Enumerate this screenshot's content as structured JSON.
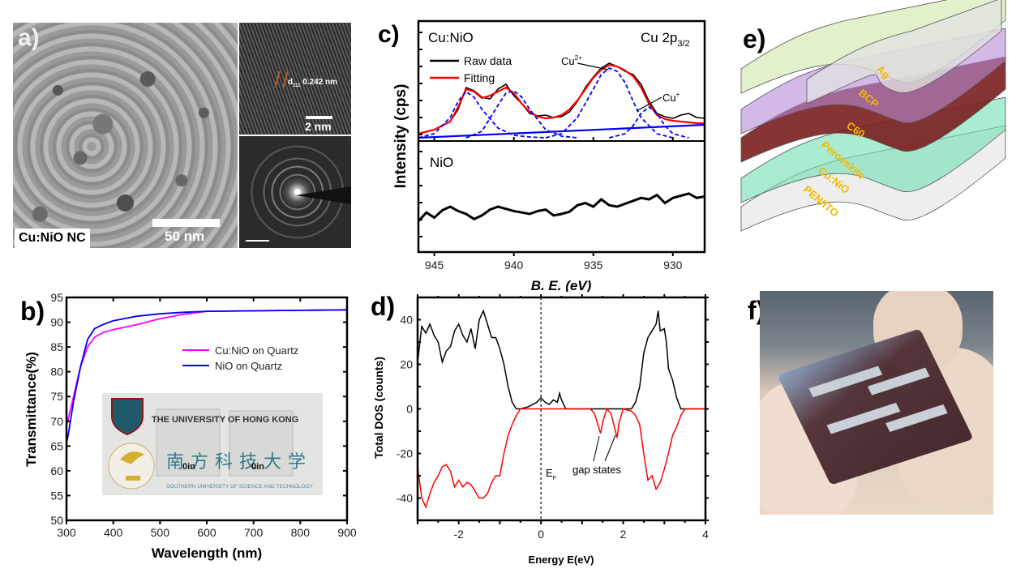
{
  "figure": {
    "panels": {
      "a": {
        "label": "a)",
        "sample_label": "Cu:NiO NC",
        "main_scale_bar": "50 nm",
        "hrtem_annotation": "d",
        "hrtem_annotation_sub": "111",
        "hrtem_annotation_value": "0.242 nm",
        "hrtem_scale_bar": "2 nm"
      },
      "e": {
        "label": "e)",
        "layers": [
          {
            "name": "Ag",
            "color": "#e3e3e3"
          },
          {
            "name": "BCP",
            "color": "#cfe6a8"
          },
          {
            "name": "C60",
            "color": "#b58ad8"
          },
          {
            "name": "Perovskite",
            "color": "#7a1e1e"
          },
          {
            "name": "Cu:NiO",
            "color": "#6fe0b2"
          },
          {
            "name": "PEN/ITO",
            "color": "#e3e3e3"
          }
        ],
        "label_color": "#f5b800"
      },
      "f": {
        "label": "f)",
        "description": "flexible perovskite device held between fingers"
      }
    }
  },
  "chart_data": [
    {
      "panel": "b)",
      "type": "line",
      "title": "",
      "xlabel": "Wavelength (nm)",
      "ylabel": "Transmittance(%)",
      "xlim": [
        300,
        900
      ],
      "ylim": [
        50,
        95
      ],
      "xticks": [
        300,
        400,
        500,
        600,
        700,
        800,
        900
      ],
      "yticks": [
        50,
        55,
        60,
        65,
        70,
        75,
        80,
        85,
        90,
        95
      ],
      "legend_position": "upper-right",
      "series": [
        {
          "name": "Cu:NiO on Quartz",
          "color": "#ff00ff",
          "x": [
            300,
            305,
            315,
            330,
            345,
            360,
            380,
            400,
            450,
            500,
            550,
            600,
            700,
            800,
            900
          ],
          "y": [
            69,
            71,
            75,
            81,
            85,
            87,
            88,
            88.5,
            89.5,
            90.7,
            91.6,
            92.2,
            92.3,
            92.4,
            92.5
          ]
        },
        {
          "name": "NiO on Quartz",
          "color": "#0000ff",
          "x": [
            300,
            305,
            315,
            330,
            345,
            360,
            380,
            400,
            450,
            500,
            550,
            600,
            700,
            800,
            900
          ],
          "y": [
            65.5,
            68,
            74,
            81,
            86.5,
            88.7,
            89.6,
            90.3,
            91.2,
            91.7,
            92.0,
            92.2,
            92.3,
            92.4,
            92.5
          ]
        }
      ],
      "inset_photo": {
        "text_top": "THE UNIVERSITY OF HONG KONG",
        "text_chinese": "南方科技大学",
        "text_bottom": "SOUTHERN UNIVERSITY OF SCIENCE AND TECHNOLOGY",
        "sample_marks": [
          "0in",
          "0in"
        ]
      }
    },
    {
      "panel": "c)",
      "type": "line",
      "xlabel": "B. E. (eV)",
      "ylabel": "Intensity (cps)",
      "xlim": [
        946,
        928
      ],
      "xticks": [
        945,
        940,
        935,
        930
      ],
      "subplots": [
        {
          "sample": "Cu:NiO",
          "title_right": "Cu 2p",
          "title_right_sub": "3/2",
          "legend": [
            "Raw data",
            "Fitting"
          ],
          "annotations": [
            {
              "text": "Cu",
              "sup": "2+",
              "x": 934
            },
            {
              "text": "Cu",
              "sup": "+",
              "x": 932
            }
          ],
          "series": [
            {
              "name": "Raw data",
              "color": "#000000",
              "x": [
                946,
                945,
                944,
                943.5,
                943,
                942.5,
                942,
                941.5,
                941,
                940.5,
                940,
                939.5,
                939,
                938.5,
                938,
                937.5,
                937,
                936.5,
                936,
                935.5,
                935,
                934.5,
                934,
                933.5,
                933,
                932.5,
                932,
                931.5,
                931,
                930.5,
                930,
                929.5,
                929,
                928.5,
                928
              ],
              "y": [
                0.05,
                0.1,
                0.2,
                0.35,
                0.62,
                0.58,
                0.5,
                0.48,
                0.6,
                0.66,
                0.52,
                0.42,
                0.3,
                0.27,
                0.28,
                0.25,
                0.26,
                0.32,
                0.45,
                0.62,
                0.75,
                0.86,
                0.92,
                0.88,
                0.82,
                0.78,
                0.66,
                0.45,
                0.3,
                0.26,
                0.24,
                0.28,
                0.3,
                0.25,
                0.24
              ]
            },
            {
              "name": "Fitting",
              "color": "#ff0000",
              "x": [
                946,
                945,
                944,
                943.5,
                943,
                942.5,
                942,
                941.5,
                941,
                940.5,
                940,
                939.5,
                939,
                938.5,
                938,
                937.5,
                937,
                936.5,
                936,
                935.5,
                935,
                934.5,
                934,
                933.5,
                933,
                932.5,
                932,
                931.5,
                931,
                930.5,
                930,
                929.5,
                929,
                928.5,
                928
              ],
              "y": [
                0.05,
                0.1,
                0.2,
                0.38,
                0.6,
                0.57,
                0.49,
                0.52,
                0.57,
                0.62,
                0.55,
                0.42,
                0.32,
                0.26,
                0.24,
                0.25,
                0.28,
                0.35,
                0.46,
                0.6,
                0.74,
                0.84,
                0.9,
                0.88,
                0.83,
                0.76,
                0.62,
                0.42,
                0.28,
                0.23,
                0.21,
                0.2,
                0.19,
                0.18,
                0.18
              ]
            },
            {
              "name": "Peak 1",
              "color": "#0000ff",
              "dashed": true,
              "x": [
                946,
                945,
                944,
                943.5,
                943,
                942.5,
                942,
                941,
                940,
                939,
                938
              ],
              "y": [
                0.0,
                0.05,
                0.25,
                0.45,
                0.57,
                0.5,
                0.35,
                0.12,
                0.03,
                0.01,
                0.0
              ]
            },
            {
              "name": "Peak 2",
              "color": "#0000ff",
              "dashed": true,
              "x": [
                943,
                942,
                941,
                940.5,
                940,
                939.5,
                939,
                938,
                937,
                936
              ],
              "y": [
                0.0,
                0.08,
                0.4,
                0.55,
                0.58,
                0.5,
                0.35,
                0.1,
                0.02,
                0.0
              ]
            },
            {
              "name": "Peak Cu2+",
              "color": "#0000ff",
              "dashed": true,
              "x": [
                938,
                937,
                936,
                935,
                934.5,
                934,
                933.5,
                933,
                932.5,
                932,
                931,
                930
              ],
              "y": [
                0.0,
                0.05,
                0.25,
                0.6,
                0.78,
                0.86,
                0.82,
                0.68,
                0.45,
                0.25,
                0.05,
                0.0
              ]
            },
            {
              "name": "Peak Cu+",
              "color": "#0000ff",
              "dashed": true,
              "x": [
                934,
                933,
                932.5,
                932,
                931.5,
                931,
                930.5,
                930,
                929
              ],
              "y": [
                0.0,
                0.05,
                0.15,
                0.3,
                0.38,
                0.3,
                0.15,
                0.05,
                0.0
              ]
            },
            {
              "name": "Background",
              "color": "#0000ff",
              "dashed": false,
              "x": [
                946,
                928
              ],
              "y": [
                0.0,
                0.16
              ]
            }
          ]
        },
        {
          "sample": "NiO",
          "series": [
            {
              "name": "NiO raw data",
              "color": "#000000",
              "x": [
                946,
                945.5,
                945,
                944.5,
                944,
                943.5,
                943,
                942.5,
                942,
                941.5,
                941,
                940.5,
                940,
                939.5,
                939,
                938.5,
                938,
                937.5,
                937,
                936.5,
                936,
                935.5,
                935,
                934.5,
                934,
                933.5,
                933,
                932.5,
                932,
                931.5,
                931,
                930.5,
                930,
                929.5,
                929,
                928.5,
                928
              ],
              "y": [
                0.3,
                0.42,
                0.35,
                0.45,
                0.5,
                0.44,
                0.4,
                0.33,
                0.38,
                0.46,
                0.5,
                0.47,
                0.44,
                0.42,
                0.4,
                0.44,
                0.46,
                0.38,
                0.4,
                0.43,
                0.52,
                0.55,
                0.5,
                0.6,
                0.52,
                0.5,
                0.54,
                0.58,
                0.62,
                0.6,
                0.66,
                0.55,
                0.62,
                0.65,
                0.68,
                0.62,
                0.64
              ]
            }
          ]
        }
      ]
    },
    {
      "panel": "d)",
      "type": "line",
      "xlabel": "Energy E(eV)",
      "ylabel": "Total DOS (counts)",
      "xlim": [
        -3,
        4
      ],
      "ylim": [
        -50,
        50
      ],
      "xticks": [
        -2,
        0,
        2,
        4
      ],
      "yticks": [
        -40,
        -20,
        0,
        20,
        40
      ],
      "annotations": [
        {
          "text": "E",
          "sub": "F",
          "x": 0
        },
        {
          "text": "gap states",
          "arrows_to": [
            1.5,
            1.85
          ]
        }
      ],
      "series": [
        {
          "name": "spin up",
          "color": "#000000",
          "x": [
            -3,
            -2.9,
            -2.8,
            -2.7,
            -2.6,
            -2.5,
            -2.4,
            -2.3,
            -2.2,
            -2.1,
            -2.0,
            -1.9,
            -1.8,
            -1.7,
            -1.6,
            -1.5,
            -1.4,
            -1.3,
            -1.2,
            -1.1,
            -1.0,
            -0.9,
            -0.8,
            -0.7,
            -0.6,
            -0.5,
            -0.3,
            -0.1,
            0,
            0.1,
            0.2,
            0.3,
            0.4,
            0.45,
            0.5,
            0.6,
            1.0,
            2.0,
            2.2,
            2.3,
            2.4,
            2.5,
            2.6,
            2.7,
            2.8,
            2.85,
            2.9,
            3.0,
            3.05,
            3.1,
            3.2,
            3.3,
            3.4,
            3.5,
            4.0
          ],
          "y": [
            21,
            37,
            34,
            38,
            33,
            30,
            21,
            26,
            28,
            35,
            38,
            33,
            30,
            36,
            27,
            40,
            44,
            38,
            32,
            32,
            27,
            20,
            10,
            3,
            0,
            0,
            1,
            3,
            5,
            3,
            2,
            4,
            3,
            7,
            4,
            0,
            0,
            0,
            0,
            3,
            10,
            25,
            32,
            35,
            38,
            44,
            35,
            36,
            30,
            18,
            13,
            5,
            0,
            0,
            0
          ]
        },
        {
          "name": "spin down",
          "color": "#ff0000",
          "x": [
            -3,
            -2.9,
            -2.8,
            -2.7,
            -2.6,
            -2.5,
            -2.4,
            -2.3,
            -2.2,
            -2.1,
            -2.0,
            -1.9,
            -1.8,
            -1.7,
            -1.6,
            -1.5,
            -1.4,
            -1.3,
            -1.2,
            -1.1,
            -1.0,
            -0.9,
            -0.8,
            -0.7,
            -0.6,
            -0.5,
            0,
            1.2,
            1.3,
            1.4,
            1.45,
            1.5,
            1.6,
            1.7,
            1.8,
            1.85,
            1.9,
            2.0,
            2.2,
            2.3,
            2.4,
            2.5,
            2.6,
            2.7,
            2.8,
            2.9,
            3.0,
            3.1,
            3.2,
            3.3,
            3.4,
            3.5,
            4.0
          ],
          "y": [
            -26,
            -40,
            -44,
            -38,
            -33,
            -30,
            -26,
            -25,
            -28,
            -35,
            -32,
            -35,
            -33,
            -34,
            -37,
            -40,
            -40,
            -38,
            -33,
            -30,
            -30,
            -20,
            -12,
            -7,
            -3,
            0,
            0,
            0,
            -2,
            -8,
            -11,
            -6,
            0,
            -2,
            -9,
            -13,
            -6,
            0,
            -1,
            -3,
            -7,
            -20,
            -32,
            -30,
            -36,
            -33,
            -27,
            -20,
            -12,
            -8,
            -3,
            0,
            0
          ]
        }
      ]
    }
  ]
}
